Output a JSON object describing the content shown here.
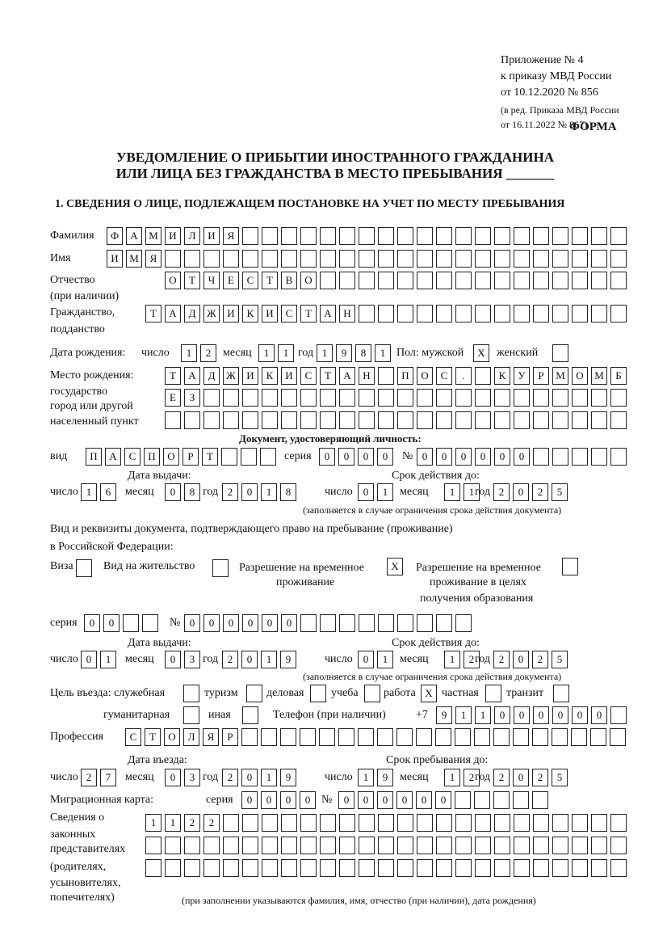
{
  "header": {
    "appendix": "Приложение № 4",
    "order": "к приказу МВД России",
    "order_date": "от 10.12.2020 № 856",
    "revision1": "(в ред. Приказа МВД России",
    "revision2": "от 16.11.2022 № 867)",
    "form_label": "ФОРМА",
    "title1": "УВЕДОМЛЕНИЕ О ПРИБЫТИИ ИНОСТРАННОГО ГРАЖДАНИНА",
    "title2": "ИЛИ ЛИЦА БЕЗ ГРАЖДАНСТВА В МЕСТО ПРЕБЫВАНИЯ _______",
    "section1": "1. СВЕДЕНИЯ О ЛИЦЕ, ПОДЛЕЖАЩЕМ ПОСТАНОВКЕ НА УЧЕТ ПО МЕСТУ ПРЕБЫВАНИЯ"
  },
  "labels": {
    "surname": "Фамилия",
    "name": "Имя",
    "patronymic": "Отчество",
    "patronymic_note": "(при наличии)",
    "citizenship": "Гражданство,",
    "citizenship2": "подданство",
    "birth_date": "Дата рождения:",
    "day": "число",
    "month": "месяц",
    "year": "год",
    "sex": "Пол: мужской",
    "female": "женский",
    "birth_place": "Место рождения:",
    "state": "государство",
    "city": "город или другой",
    "settlement": "населенный пункт",
    "id_doc": "Документ, удостоверяющий личность:",
    "kind": "вид",
    "series": "серия",
    "number": "№",
    "issue_date": "Дата выдачи:",
    "valid_until": "Срок действия до:",
    "valid_note": "(заполняется в случае ограничения срока действия документа)",
    "right_doc": "Вид и реквизиты документа, подтверждающего право на пребывание (проживание)",
    "in_rf": "в Российской Федерации:",
    "visa": "Виза",
    "residence": "Вид на жительство",
    "temp1": "Разрешение на временное",
    "temp2": "проживание",
    "edu1": "Разрешение на временное",
    "edu2": "проживание в целях",
    "edu3": "получения образования",
    "purpose": "Цель въезда: служебная",
    "tourism": "туризм",
    "business": "деловая",
    "study": "учеба",
    "work": "работа",
    "private": "частная",
    "transit": "транзит",
    "humanitarian": "гуманитарная",
    "other": "иная",
    "phone": "Телефон (при наличии)",
    "phone_prefix": "+7",
    "profession": "Профессия",
    "entry_date": "Дата въезда:",
    "stay_until": "Срок пребывания до:",
    "migration_card": "Миграционная карта:",
    "rep1": "Сведения о",
    "rep2": "законных",
    "rep3": "представителях",
    "rep4": "(родителях,",
    "rep5": "усыновителях,",
    "rep6": "попечителях)",
    "rep_note": "(при заполнении указываются фамилия, имя, отчество (при наличии), дата рождения)"
  },
  "person": {
    "surname": "ФАМИЛИЯ",
    "name": "ИМЯ",
    "patronymic": "ОТЧЕСТВО",
    "citizenship": "ТАДЖИКИСТАН",
    "birth_day": "12",
    "birth_month": "11",
    "birth_year": "1981",
    "male": "X",
    "female": "",
    "birth_place1": "ТАДЖИКИСТАН ПОС. КУРМОМБ",
    "birth_place2": "ЕЗ",
    "birth_place3": ""
  },
  "id_document": {
    "kind": "ПАСПОРТ",
    "series": "0000",
    "number": "000000",
    "issue_day": "16",
    "issue_month": "08",
    "issue_year": "2018",
    "valid_day": "01",
    "valid_month": "11",
    "valid_year": "2025"
  },
  "right_document": {
    "visa": "",
    "residence": "",
    "temp_residence": "X",
    "edu_residence": "",
    "series": "00",
    "number": "000000",
    "issue_day": "01",
    "issue_month": "03",
    "issue_year": "2019",
    "valid_day": "01",
    "valid_month": "12",
    "valid_year": "2025"
  },
  "purpose": {
    "official": "",
    "tourism": "",
    "business": "",
    "study": "",
    "work": "X",
    "private": "",
    "transit": "",
    "humanitarian": "",
    "other": ""
  },
  "phone": "911000000",
  "profession": "СТОЛЯР",
  "entry": {
    "day": "27",
    "month": "03",
    "year": "2019"
  },
  "stay_until": {
    "day": "19",
    "month": "12",
    "year": "2025"
  },
  "migration_card": {
    "series": "0000",
    "number": "000000"
  },
  "representatives": {
    "line1": "1122",
    "line2": "",
    "line3": ""
  }
}
